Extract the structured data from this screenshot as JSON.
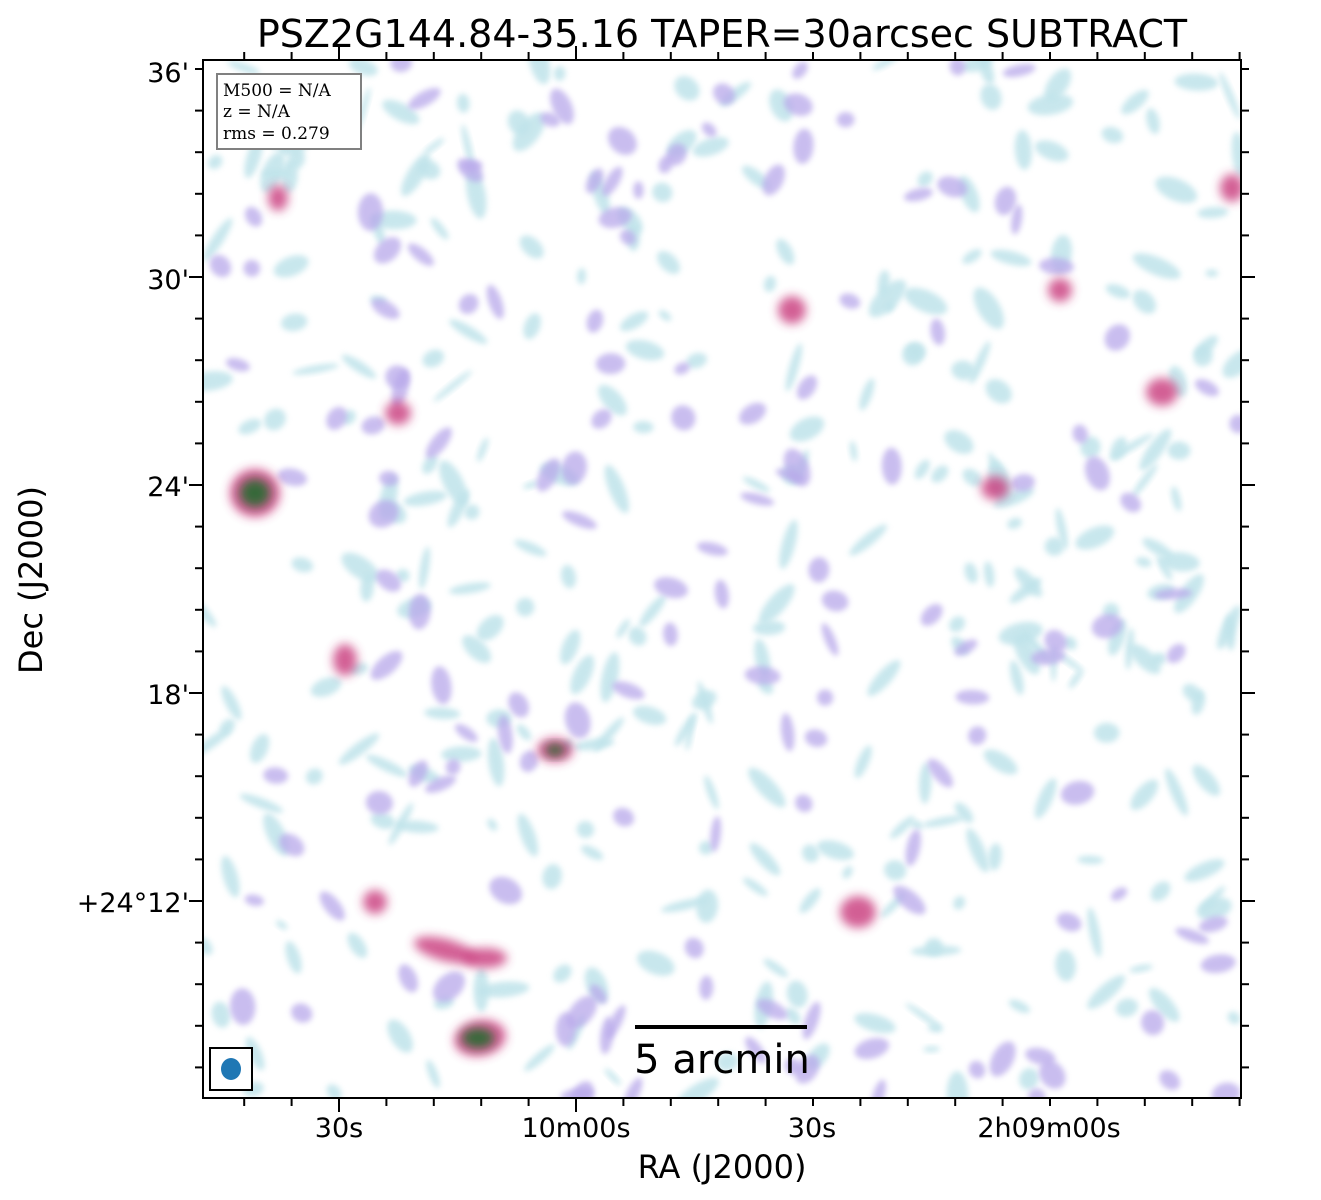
{
  "chart_data": {
    "type": "heatmap",
    "title": "PSZ2G144.84-35.16 TAPER=30arcsec SUBTRACT",
    "xlabel": "RA (J2000)",
    "ylabel": "Dec (J2000)",
    "x_ticks": [
      "30s",
      "10m00s",
      "30s",
      "2h09m00s"
    ],
    "y_ticks": [
      "+24°12'",
      "18'",
      "24'",
      "30'",
      "36'"
    ],
    "info": {
      "m500": "M500 = N/A",
      "z": "z = N/A",
      "rms": "rms = 0.279"
    },
    "scalebar_label": "5 arcmin",
    "colors": {
      "low": "#bfe3ea",
      "mid": "#b8a8ea",
      "high": "#c8387a",
      "peak": "#1a6a2a",
      "beam": "#1f77b4"
    }
  }
}
